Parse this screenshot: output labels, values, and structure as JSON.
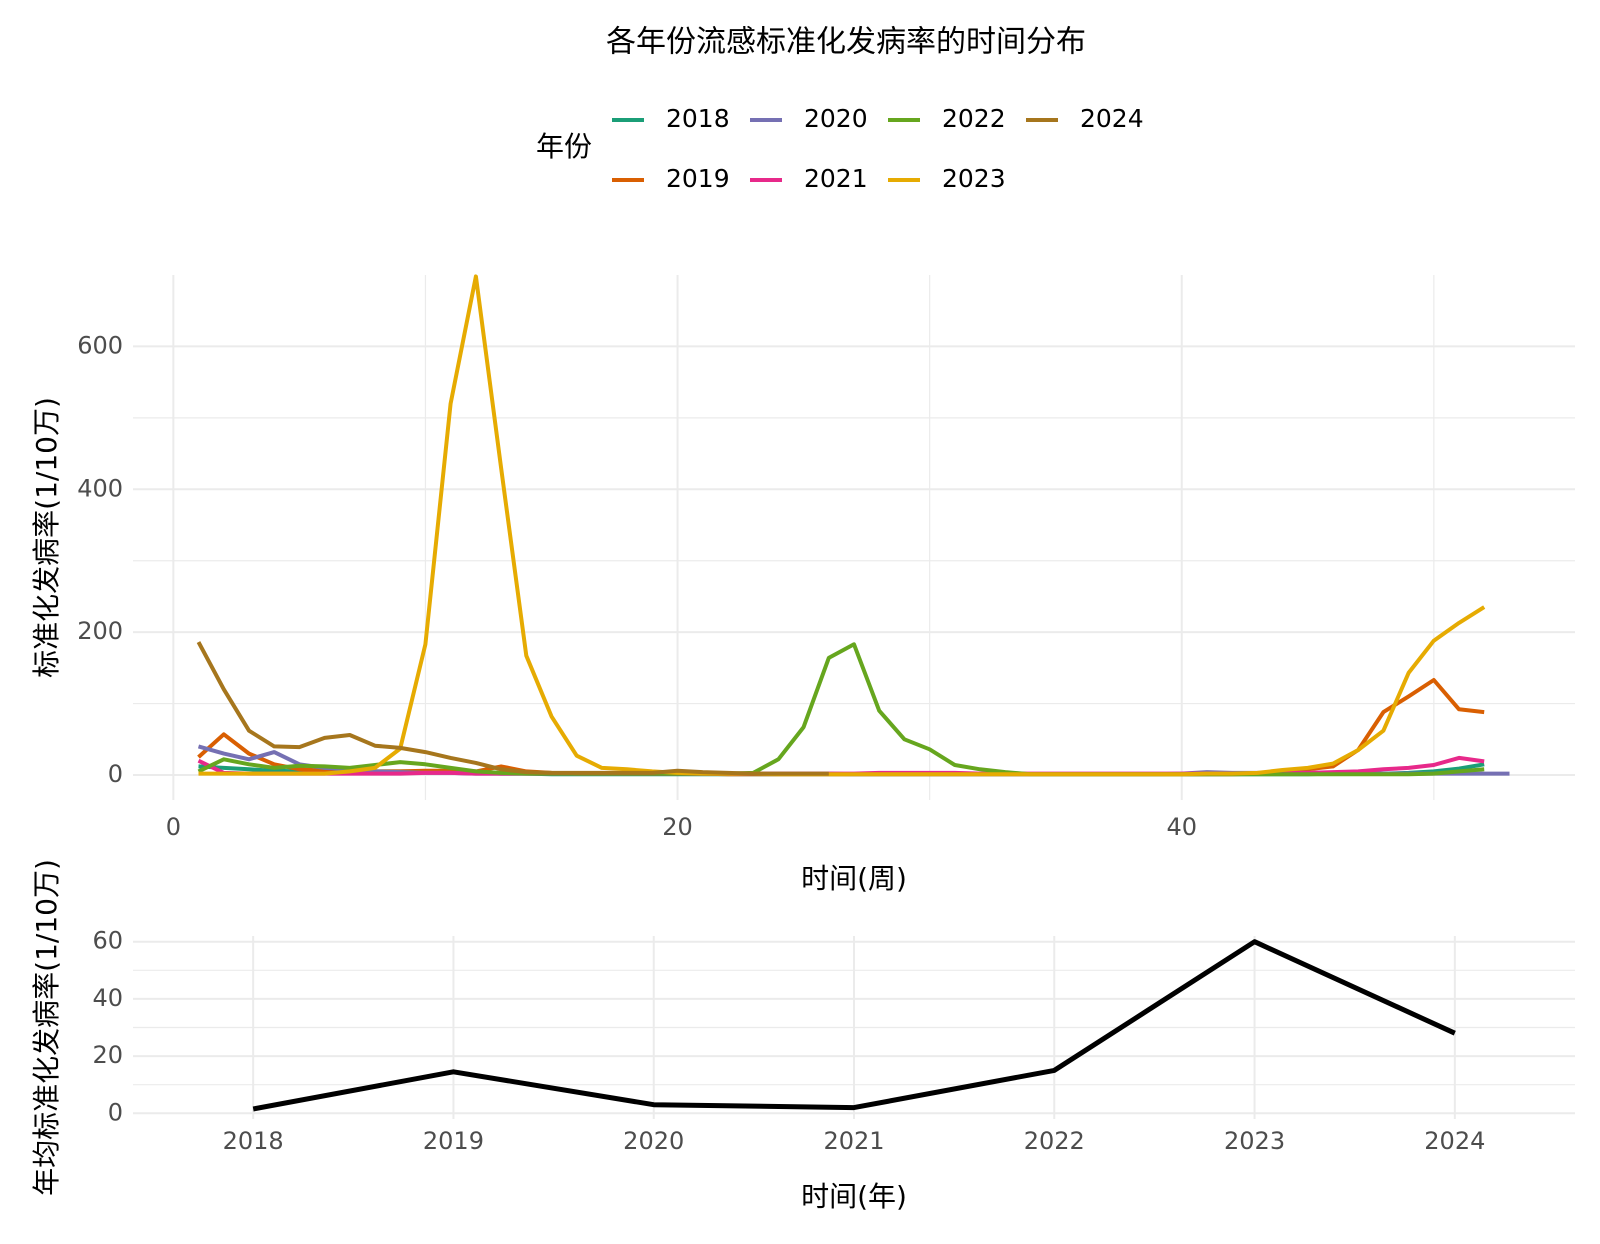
{
  "chart_data": [
    {
      "type": "line",
      "title": "各年份流感标准化发病率的时间分布",
      "legend_title": "年份",
      "x_label": "时间(周)",
      "y_label": "标准化发病率(1/10万)",
      "x": [
        1,
        2,
        3,
        4,
        5,
        6,
        7,
        8,
        9,
        10,
        11,
        12,
        13,
        14,
        15,
        16,
        17,
        18,
        19,
        20,
        21,
        22,
        23,
        24,
        25,
        26,
        27,
        28,
        29,
        30,
        31,
        32,
        33,
        34,
        35,
        36,
        37,
        38,
        39,
        40,
        41,
        42,
        43,
        44,
        45,
        46,
        47,
        48,
        49,
        50,
        51,
        52,
        53
      ],
      "xlim": [
        -1.6,
        55.6
      ],
      "xticks": [
        0,
        20,
        40
      ],
      "ylim": [
        -35,
        700
      ],
      "yticks": [
        0,
        200,
        400,
        600
      ],
      "grid": true,
      "series": [
        {
          "name": "2018",
          "color": "#1b9e77",
          "values": [
            12,
            10,
            8,
            6,
            5,
            5,
            5,
            5,
            5,
            5,
            4,
            3,
            2,
            2,
            1,
            1,
            1,
            1,
            1,
            1,
            1,
            1,
            1,
            1,
            1,
            1,
            1,
            1,
            1,
            1,
            1,
            1,
            1,
            1,
            1,
            1,
            1,
            1,
            1,
            1,
            1,
            1,
            1,
            1,
            1,
            2,
            2,
            2,
            3,
            5,
            9,
            15,
            null
          ]
        },
        {
          "name": "2019",
          "color": "#d95f02",
          "values": [
            25,
            57,
            30,
            15,
            8,
            6,
            5,
            5,
            5,
            6,
            6,
            5,
            12,
            5,
            3,
            2,
            2,
            2,
            2,
            2,
            2,
            1,
            1,
            1,
            1,
            1,
            1,
            1,
            1,
            1,
            1,
            1,
            1,
            1,
            1,
            1,
            1,
            1,
            1,
            1,
            1,
            1,
            2,
            3,
            8,
            12,
            35,
            88,
            110,
            133,
            92,
            88,
            null
          ]
        },
        {
          "name": "2020",
          "color": "#7570b3",
          "values": [
            40,
            30,
            22,
            32,
            15,
            10,
            8,
            5,
            4,
            3,
            3,
            2,
            2,
            2,
            2,
            2,
            2,
            2,
            2,
            2,
            2,
            2,
            2,
            2,
            2,
            2,
            1,
            1,
            1,
            1,
            1,
            1,
            1,
            1,
            1,
            1,
            1,
            1,
            1,
            2,
            4,
            3,
            3,
            3,
            3,
            3,
            2,
            2,
            2,
            2,
            2,
            2,
            2
          ]
        },
        {
          "name": "2021",
          "color": "#e7298a",
          "values": [
            20,
            3,
            2,
            2,
            2,
            2,
            2,
            2,
            2,
            3,
            3,
            2,
            2,
            2,
            2,
            2,
            2,
            2,
            2,
            2,
            2,
            2,
            2,
            2,
            2,
            2,
            2,
            3,
            3,
            3,
            3,
            2,
            2,
            2,
            2,
            2,
            2,
            2,
            2,
            2,
            2,
            2,
            2,
            3,
            3,
            4,
            5,
            8,
            10,
            14,
            24,
            19,
            null
          ]
        },
        {
          "name": "2022",
          "color": "#66a61e",
          "values": [
            5,
            22,
            15,
            10,
            13,
            12,
            10,
            14,
            18,
            15,
            10,
            5,
            3,
            2,
            2,
            2,
            2,
            2,
            2,
            2,
            2,
            2,
            3,
            22,
            67,
            164,
            183,
            90,
            50,
            36,
            14,
            8,
            4,
            1,
            1,
            1,
            1,
            1,
            1,
            1,
            1,
            1,
            1,
            1,
            1,
            1,
            1,
            1,
            1,
            2,
            5,
            8,
            null
          ]
        },
        {
          "name": "2023",
          "color": "#e6ab02",
          "values": [
            2,
            2,
            2,
            2,
            2,
            2,
            5,
            10,
            37,
            183,
            520,
            698,
            430,
            167,
            82,
            27,
            10,
            8,
            5,
            3,
            2,
            2,
            2,
            1,
            1,
            1,
            1,
            1,
            1,
            1,
            1,
            1,
            1,
            1,
            1,
            1,
            1,
            1,
            1,
            1,
            2,
            2,
            3,
            7,
            10,
            16,
            35,
            62,
            143,
            188,
            213,
            235,
            null
          ]
        },
        {
          "name": "2024",
          "color": "#a6761d",
          "values": [
            186,
            120,
            62,
            40,
            39,
            52,
            56,
            41,
            38,
            32,
            24,
            17,
            8,
            4,
            3,
            3,
            3,
            3,
            3,
            6,
            4,
            3,
            2,
            2,
            2,
            2,
            null,
            null,
            null,
            null,
            null,
            null,
            null,
            null,
            null,
            null,
            null,
            null,
            null,
            null,
            null,
            null,
            null,
            null,
            null,
            null,
            null,
            null,
            null,
            null,
            null,
            null,
            null
          ]
        }
      ]
    },
    {
      "type": "line",
      "x_label": "时间(年)",
      "y_label": "年均标准化发病率(1/10万)",
      "categories": [
        "2018",
        "2019",
        "2020",
        "2021",
        "2022",
        "2023",
        "2024"
      ],
      "values": [
        1.5,
        14.5,
        3,
        2,
        15,
        60,
        28
      ],
      "color": "#000000",
      "ylim": [
        -2,
        62
      ],
      "yticks": [
        0,
        20,
        40,
        60
      ],
      "grid": true
    }
  ]
}
